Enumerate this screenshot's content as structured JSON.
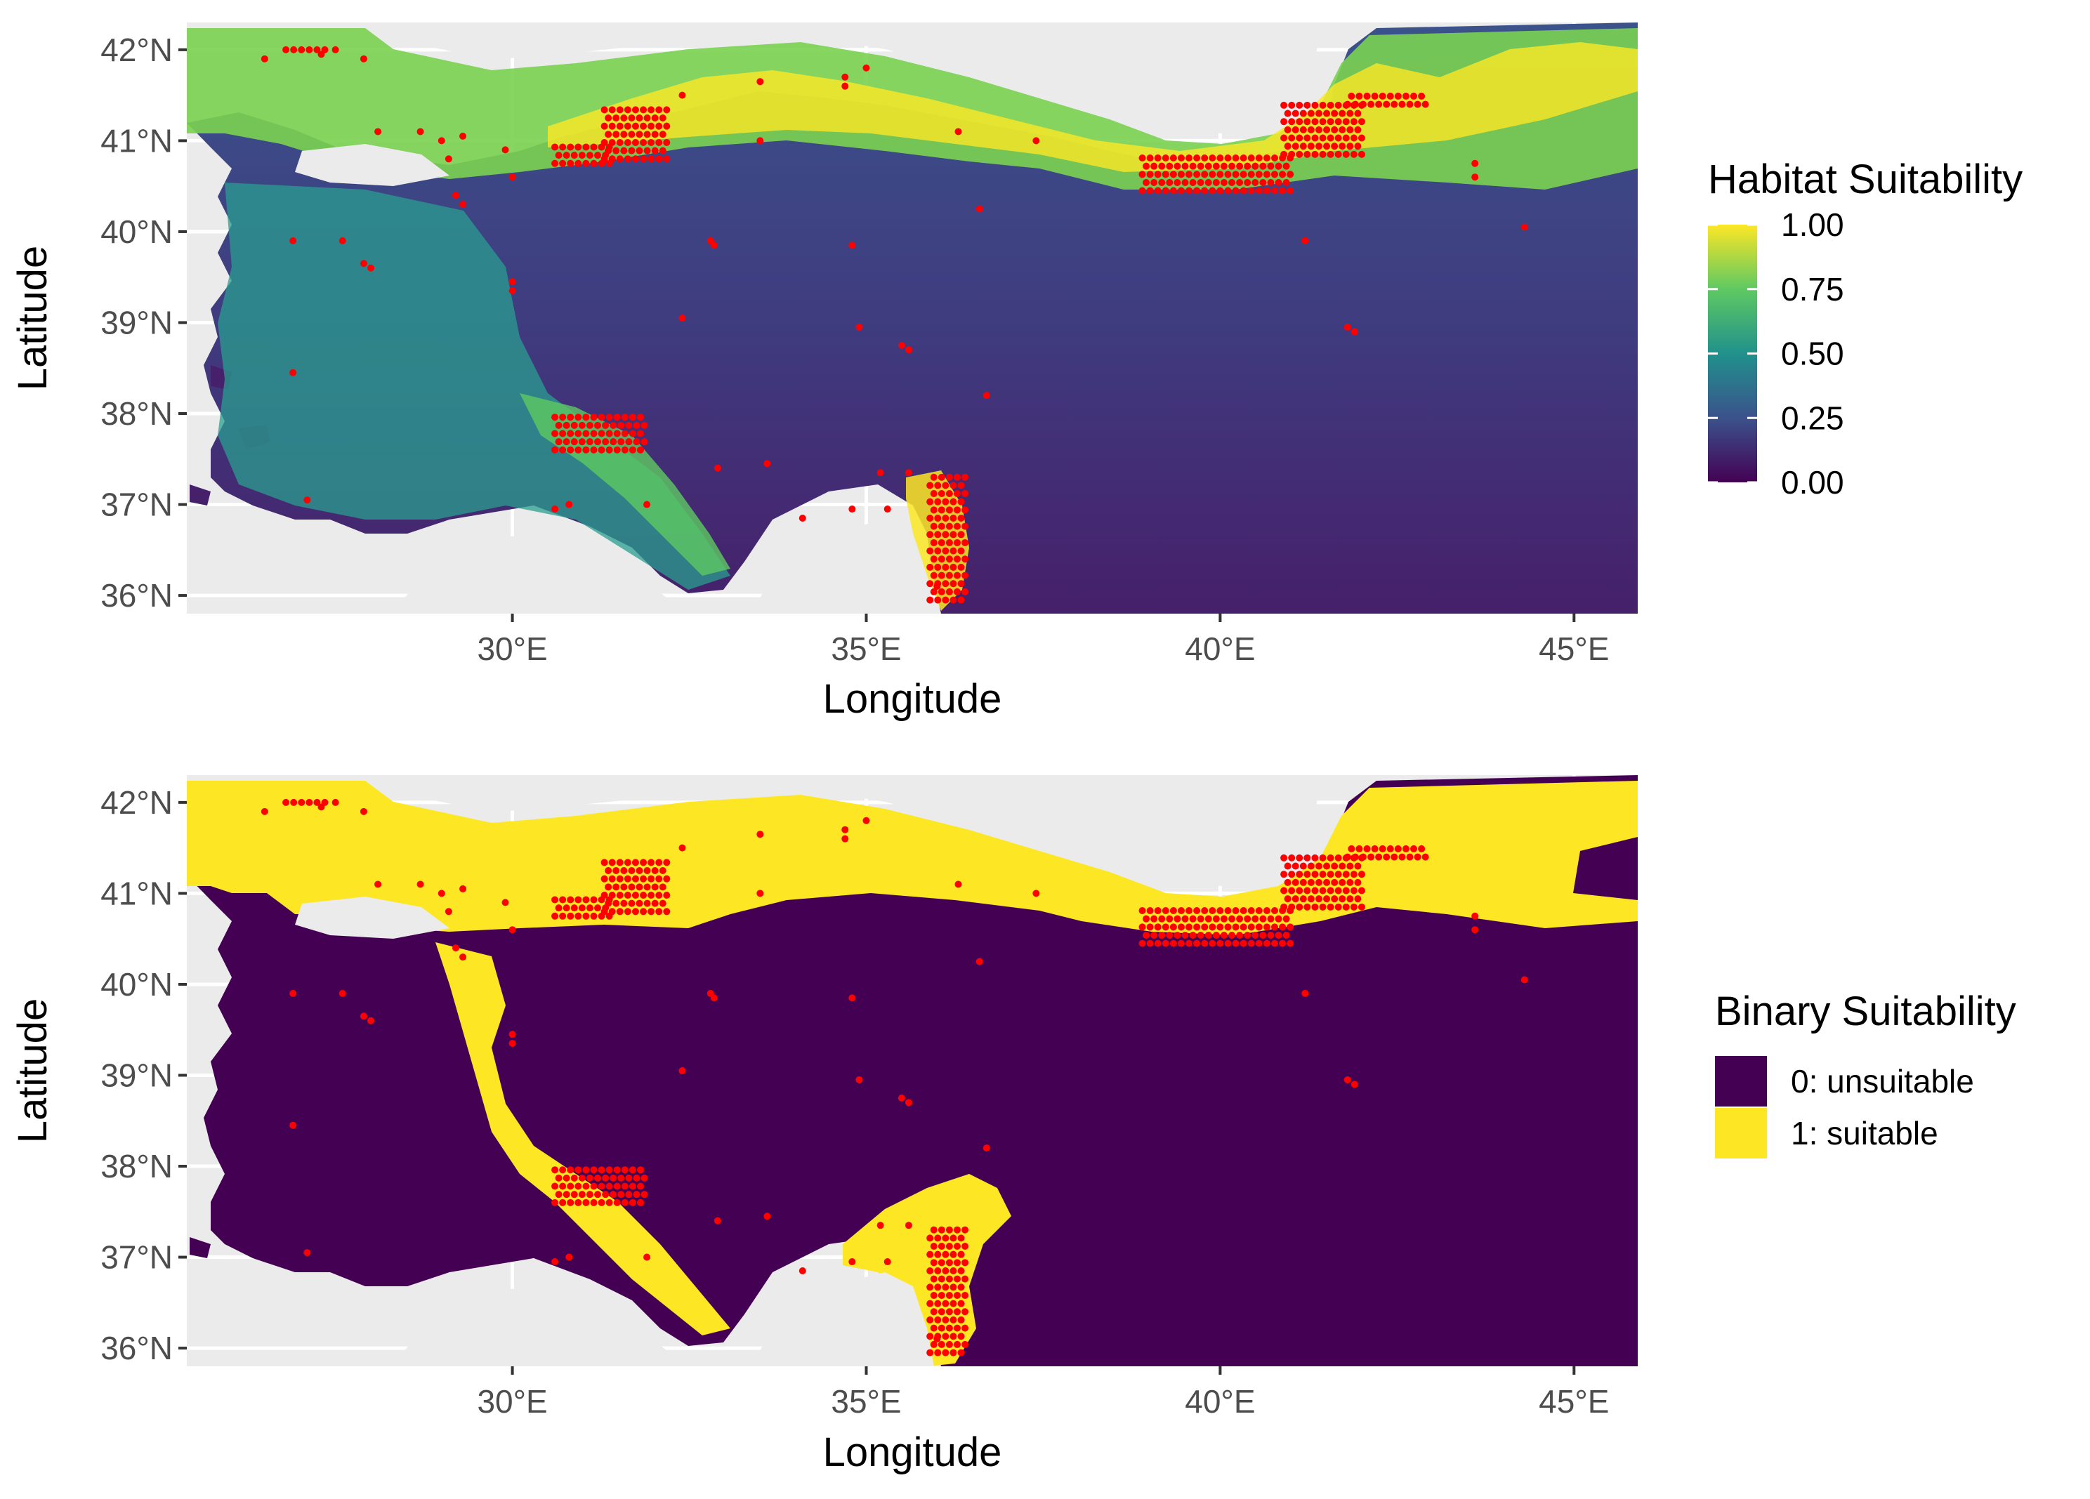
{
  "colors": {
    "panel_background": "#ebebeb",
    "grid": "#ffffff",
    "points": "#ff0000",
    "viridis_low": "#440154",
    "viridis_mid": "#21918c",
    "viridis_high": "#fde725",
    "unsuitable": "#440154",
    "suitable": "#fde725"
  },
  "chart_data": [
    {
      "type": "heatmap",
      "panel": "continuous",
      "xlabel": "Longitude",
      "ylabel": "Latitude",
      "xlim": [
        25.4,
        45.9
      ],
      "ylim": [
        35.8,
        42.3
      ],
      "x_ticks": [
        30,
        35,
        40,
        45
      ],
      "x_tick_labels": [
        "30°E",
        "35°E",
        "40°E",
        "45°E"
      ],
      "y_ticks": [
        36,
        37,
        38,
        39,
        40,
        41,
        42
      ],
      "y_tick_labels": [
        "36°N",
        "37°N",
        "38°N",
        "39°N",
        "40°N",
        "41°N",
        "42°N"
      ],
      "legend": {
        "title": "Habitat Suitability",
        "type": "colorbar",
        "range": [
          0,
          1
        ],
        "breaks": [
          1.0,
          0.75,
          0.5,
          0.25,
          0.0
        ],
        "labels": [
          "1.00",
          "0.75",
          "0.50",
          "0.25",
          "0.00"
        ],
        "placement": "right"
      }
    },
    {
      "type": "heatmap",
      "panel": "binary",
      "xlabel": "Longitude",
      "ylabel": "Latitude",
      "xlim": [
        25.4,
        45.9
      ],
      "ylim": [
        35.8,
        42.3
      ],
      "x_ticks": [
        30,
        35,
        40,
        45
      ],
      "x_tick_labels": [
        "30°E",
        "35°E",
        "40°E",
        "45°E"
      ],
      "y_ticks": [
        36,
        37,
        38,
        39,
        40,
        41,
        42
      ],
      "y_tick_labels": [
        "36°N",
        "37°N",
        "38°N",
        "39°N",
        "40°N",
        "41°N",
        "42°N"
      ],
      "legend": {
        "title": "Binary Suitability",
        "type": "discrete",
        "placement": "right",
        "items": [
          {
            "label": "0: unsuitable",
            "color": "#440154"
          },
          {
            "label": "1: suitable",
            "color": "#fde725"
          }
        ]
      }
    }
  ],
  "occurrence_points": {
    "scattered": [
      [
        26.5,
        41.9
      ],
      [
        27.9,
        41.9
      ],
      [
        27.5,
        42.0
      ],
      [
        27.3,
        41.95
      ],
      [
        28.1,
        41.1
      ],
      [
        28.7,
        41.1
      ],
      [
        29.0,
        41.0
      ],
      [
        29.3,
        41.05
      ],
      [
        29.1,
        40.8
      ],
      [
        29.2,
        40.4
      ],
      [
        29.3,
        40.3
      ],
      [
        29.9,
        40.9
      ],
      [
        30.0,
        40.6
      ],
      [
        32.4,
        41.5
      ],
      [
        33.5,
        41.65
      ],
      [
        34.7,
        41.7
      ],
      [
        35.0,
        41.8
      ],
      [
        34.7,
        41.6
      ],
      [
        36.3,
        41.1
      ],
      [
        33.5,
        41.0
      ],
      [
        32.8,
        39.9
      ],
      [
        32.85,
        39.85
      ],
      [
        34.8,
        39.85
      ],
      [
        36.6,
        40.25
      ],
      [
        26.9,
        39.9
      ],
      [
        27.6,
        39.9
      ],
      [
        27.9,
        39.65
      ],
      [
        28.0,
        39.6
      ],
      [
        30.0,
        39.45
      ],
      [
        30.0,
        39.35
      ],
      [
        32.4,
        39.05
      ],
      [
        34.9,
        38.95
      ],
      [
        35.5,
        38.75
      ],
      [
        35.6,
        38.7
      ],
      [
        36.7,
        38.2
      ],
      [
        32.9,
        37.4
      ],
      [
        33.6,
        37.45
      ],
      [
        35.2,
        37.35
      ],
      [
        34.1,
        36.85
      ],
      [
        34.8,
        36.95
      ],
      [
        31.9,
        37.0
      ],
      [
        30.8,
        37.0
      ],
      [
        30.6,
        36.95
      ],
      [
        27.1,
        37.05
      ],
      [
        26.9,
        38.45
      ],
      [
        41.2,
        39.9
      ],
      [
        41.8,
        38.95
      ],
      [
        41.9,
        38.9
      ],
      [
        43.6,
        40.75
      ],
      [
        43.6,
        40.6
      ],
      [
        44.3,
        40.05
      ],
      [
        37.4,
        41.0
      ],
      [
        35.6,
        37.35
      ],
      [
        35.3,
        36.95
      ],
      [
        36.0,
        36.1
      ]
    ],
    "clusters": [
      {
        "lon": [
          30.6,
          31.4
        ],
        "lat": [
          40.75,
          40.95
        ],
        "dx": 0.11,
        "dy": 0.09
      },
      {
        "lon": [
          31.3,
          32.2
        ],
        "lat": [
          40.8,
          41.35
        ],
        "dx": 0.11,
        "dy": 0.09
      },
      {
        "lon": [
          30.6,
          31.9
        ],
        "lat": [
          37.6,
          38.0
        ],
        "dx": 0.11,
        "dy": 0.09
      },
      {
        "lon": [
          35.9,
          36.4
        ],
        "lat": [
          35.95,
          37.3
        ],
        "dx": 0.11,
        "dy": 0.09
      },
      {
        "lon": [
          38.9,
          41.0
        ],
        "lat": [
          40.45,
          40.85
        ],
        "dx": 0.11,
        "dy": 0.09
      },
      {
        "lon": [
          40.9,
          42.0
        ],
        "lat": [
          40.85,
          41.4
        ],
        "dx": 0.11,
        "dy": 0.09
      },
      {
        "lon": [
          41.8,
          42.9
        ],
        "lat": [
          41.4,
          41.55
        ],
        "dx": 0.11,
        "dy": 0.09
      },
      {
        "lon": [
          26.8,
          27.4
        ],
        "lat": [
          42.0,
          42.05
        ],
        "dx": 0.11,
        "dy": 0.09
      }
    ]
  }
}
